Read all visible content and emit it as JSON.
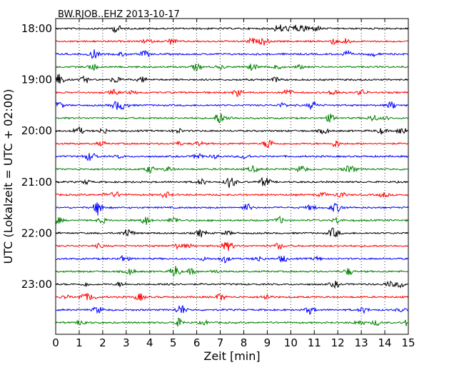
{
  "chart_data": {
    "type": "line",
    "title": "BW.RJOB..EHZ 2013-10-17",
    "xlabel": "Zeit  [min]",
    "ylabel": "UTC (Lokalzeit = UTC + 02:00)",
    "xlim": [
      0,
      15
    ],
    "x_ticks": [
      "0",
      "1",
      "2",
      "3",
      "4",
      "5",
      "6",
      "7",
      "8",
      "9",
      "10",
      "11",
      "12",
      "13",
      "14",
      "15"
    ],
    "y_tick_labels": [
      "18:00",
      "19:00",
      "20:00",
      "21:00",
      "22:00",
      "23:00"
    ],
    "vertical_grid": "dotted, every minute",
    "trace_interval_minutes": 15,
    "trace_start": "18:00",
    "trace_count": 24,
    "series_colors": [
      "#000000",
      "#ff0000",
      "#0000ff",
      "#008000"
    ]
  }
}
